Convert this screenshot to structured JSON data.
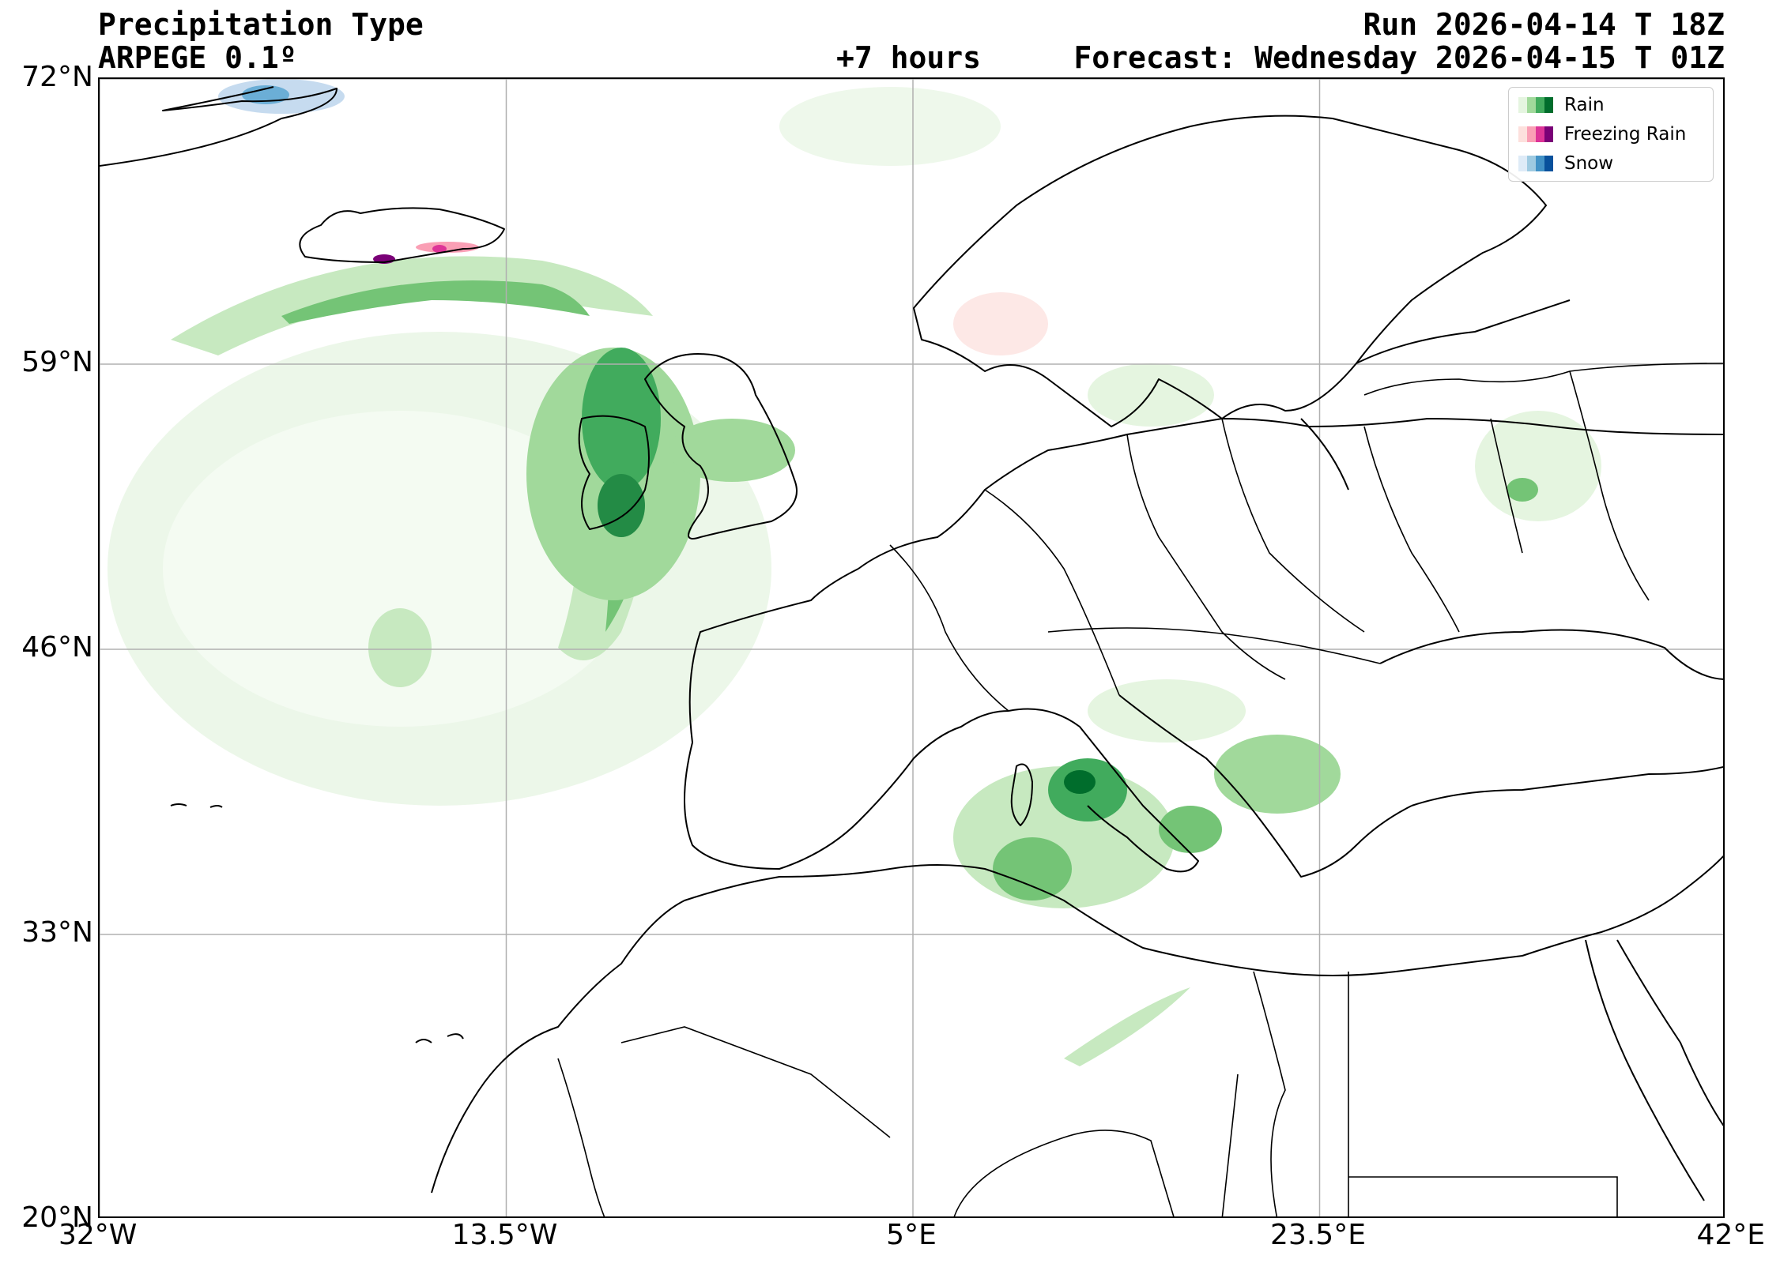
{
  "header": {
    "title": "Precipitation Type",
    "model": "ARPEGE 0.1º",
    "lead_time": "+7 hours",
    "run": "Run 2026-04-14 T 18Z",
    "forecast": "Forecast: Wednesday 2026-04-15 T 01Z"
  },
  "map": {
    "extent": {
      "lon_min": -32,
      "lon_max": 42,
      "lat_min": 20,
      "lat_max": 72
    },
    "lat_ticks": [
      {
        "value": 72,
        "label": "72°N"
      },
      {
        "value": 59,
        "label": "59°N"
      },
      {
        "value": 46,
        "label": "46°N"
      },
      {
        "value": 33,
        "label": "33°N"
      },
      {
        "value": 20,
        "label": "20°N"
      }
    ],
    "lon_ticks": [
      {
        "value": -32,
        "label": "32°W"
      },
      {
        "value": -13.5,
        "label": "13.5°W"
      },
      {
        "value": 5,
        "label": "5°E"
      },
      {
        "value": 23.5,
        "label": "23.5°E"
      },
      {
        "value": 42,
        "label": "42°E"
      }
    ],
    "gridlines": true,
    "coastline_color": "#000000",
    "gridline_color": "#b0b0b0"
  },
  "legend": {
    "placement": "top-right",
    "items": [
      {
        "label": "Rain",
        "colors": [
          "#e5f5e0",
          "#a1d99b",
          "#41ab5d",
          "#006d2c"
        ]
      },
      {
        "label": "Freezing Rain",
        "colors": [
          "#fde0dd",
          "#fa9fb5",
          "#dd3497",
          "#7a0177"
        ]
      },
      {
        "label": "Snow",
        "colors": [
          "#deebf7",
          "#9ecae1",
          "#4292c6",
          "#08519c"
        ]
      }
    ]
  }
}
